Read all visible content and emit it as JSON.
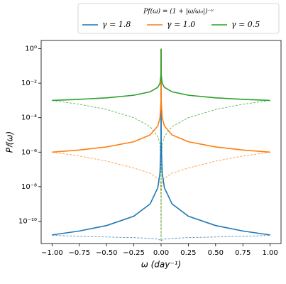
{
  "chart_data": {
    "type": "line",
    "legend_title": "P𝑓(ω) = (1 + |ω/ω₀|)⁻ᵞ",
    "xlabel": "ω (day⁻¹)",
    "ylabel": "P𝑓(ω)",
    "x": [
      -1,
      -0.75,
      -0.5,
      -0.25,
      -0.1,
      -0.03,
      -0.01,
      -0.001,
      0,
      0.001,
      0.01,
      0.03,
      0.1,
      0.25,
      0.5,
      0.75,
      1
    ],
    "series": [
      {
        "name": "γ = 1.8",
        "color": "#1f77b4",
        "style": "solid",
        "values": [
          1.58e-11,
          2.66e-11,
          5.52e-11,
          1.92e-10,
          1e-09,
          8.7e-09,
          6.3e-08,
          4e-06,
          1,
          4e-06,
          6.3e-08,
          8.7e-09,
          1e-09,
          1.92e-10,
          5.52e-11,
          2.66e-11,
          1.58e-11
        ]
      },
      {
        "name": "γ = 1.0",
        "color": "#ff7f0e",
        "style": "solid",
        "values": [
          1e-06,
          1.33e-06,
          2e-06,
          4e-06,
          1e-05,
          3.3e-05,
          0.0001,
          0.001,
          1,
          0.001,
          0.0001,
          3.3e-05,
          1e-05,
          4e-06,
          2e-06,
          1.33e-06,
          1e-06
        ]
      },
      {
        "name": "γ = 0.5",
        "color": "#2ca02c",
        "style": "solid",
        "values": [
          0.001,
          0.001155,
          0.001414,
          0.002,
          0.00316,
          0.00577,
          0.01,
          0.0316,
          1,
          0.0316,
          0.01,
          0.00577,
          0.00316,
          0.002,
          0.001414,
          0.001155,
          0.001
        ]
      },
      {
        "color": "#1f77b4",
        "style": "dashed",
        "values": [
          1.5e-11,
          1.3e-11,
          1.2e-11,
          1.1e-11,
          1e-11,
          9e-12,
          8e-12,
          7e-12,
          7e-12,
          7e-12,
          8e-12,
          9e-12,
          1e-11,
          1.1e-11,
          1.2e-11,
          1.3e-11,
          1.5e-11
        ]
      },
      {
        "color": "#ff7f0e",
        "style": "dashed",
        "values": [
          1e-06,
          6e-07,
          3e-07,
          1.2e-07,
          6e-08,
          3e-08,
          2e-08,
          5e-09,
          7e-12,
          5e-09,
          2e-08,
          3e-08,
          6e-08,
          1.2e-07,
          3e-07,
          6e-07,
          1e-06
        ]
      },
      {
        "color": "#2ca02c",
        "style": "dashed",
        "values": [
          0.001,
          0.0006,
          0.0003,
          0.0001,
          3e-05,
          8e-06,
          3e-06,
          1e-07,
          7e-12,
          1e-07,
          3e-06,
          8e-06,
          3e-05,
          0.0001,
          0.0003,
          0.0006,
          0.001
        ]
      }
    ],
    "xlim": [
      -1.1,
      1.1
    ],
    "xticks": [
      {
        "value": -1,
        "label": "−1.00"
      },
      {
        "value": -0.75,
        "label": "−0.75"
      },
      {
        "value": -0.5,
        "label": "−0.50"
      },
      {
        "value": -0.25,
        "label": "−0.25"
      },
      {
        "value": 0,
        "label": "0.00"
      },
      {
        "value": 0.25,
        "label": "0.25"
      },
      {
        "value": 0.5,
        "label": "0.50"
      },
      {
        "value": 0.75,
        "label": "0.75"
      },
      {
        "value": 1,
        "label": "1.00"
      }
    ],
    "ylim": [
      5e-12,
      3
    ],
    "yscale": "log",
    "yticks": [
      {
        "value": 1e-10,
        "label": "10⁻¹⁰"
      },
      {
        "value": 1e-08,
        "label": "10⁻⁸"
      },
      {
        "value": 1e-06,
        "label": "10⁻⁶"
      },
      {
        "value": 0.0001,
        "label": "10⁻⁴"
      },
      {
        "value": 0.01,
        "label": "10⁻²"
      },
      {
        "value": 1,
        "label": "10⁰"
      }
    ],
    "legend": "top"
  }
}
